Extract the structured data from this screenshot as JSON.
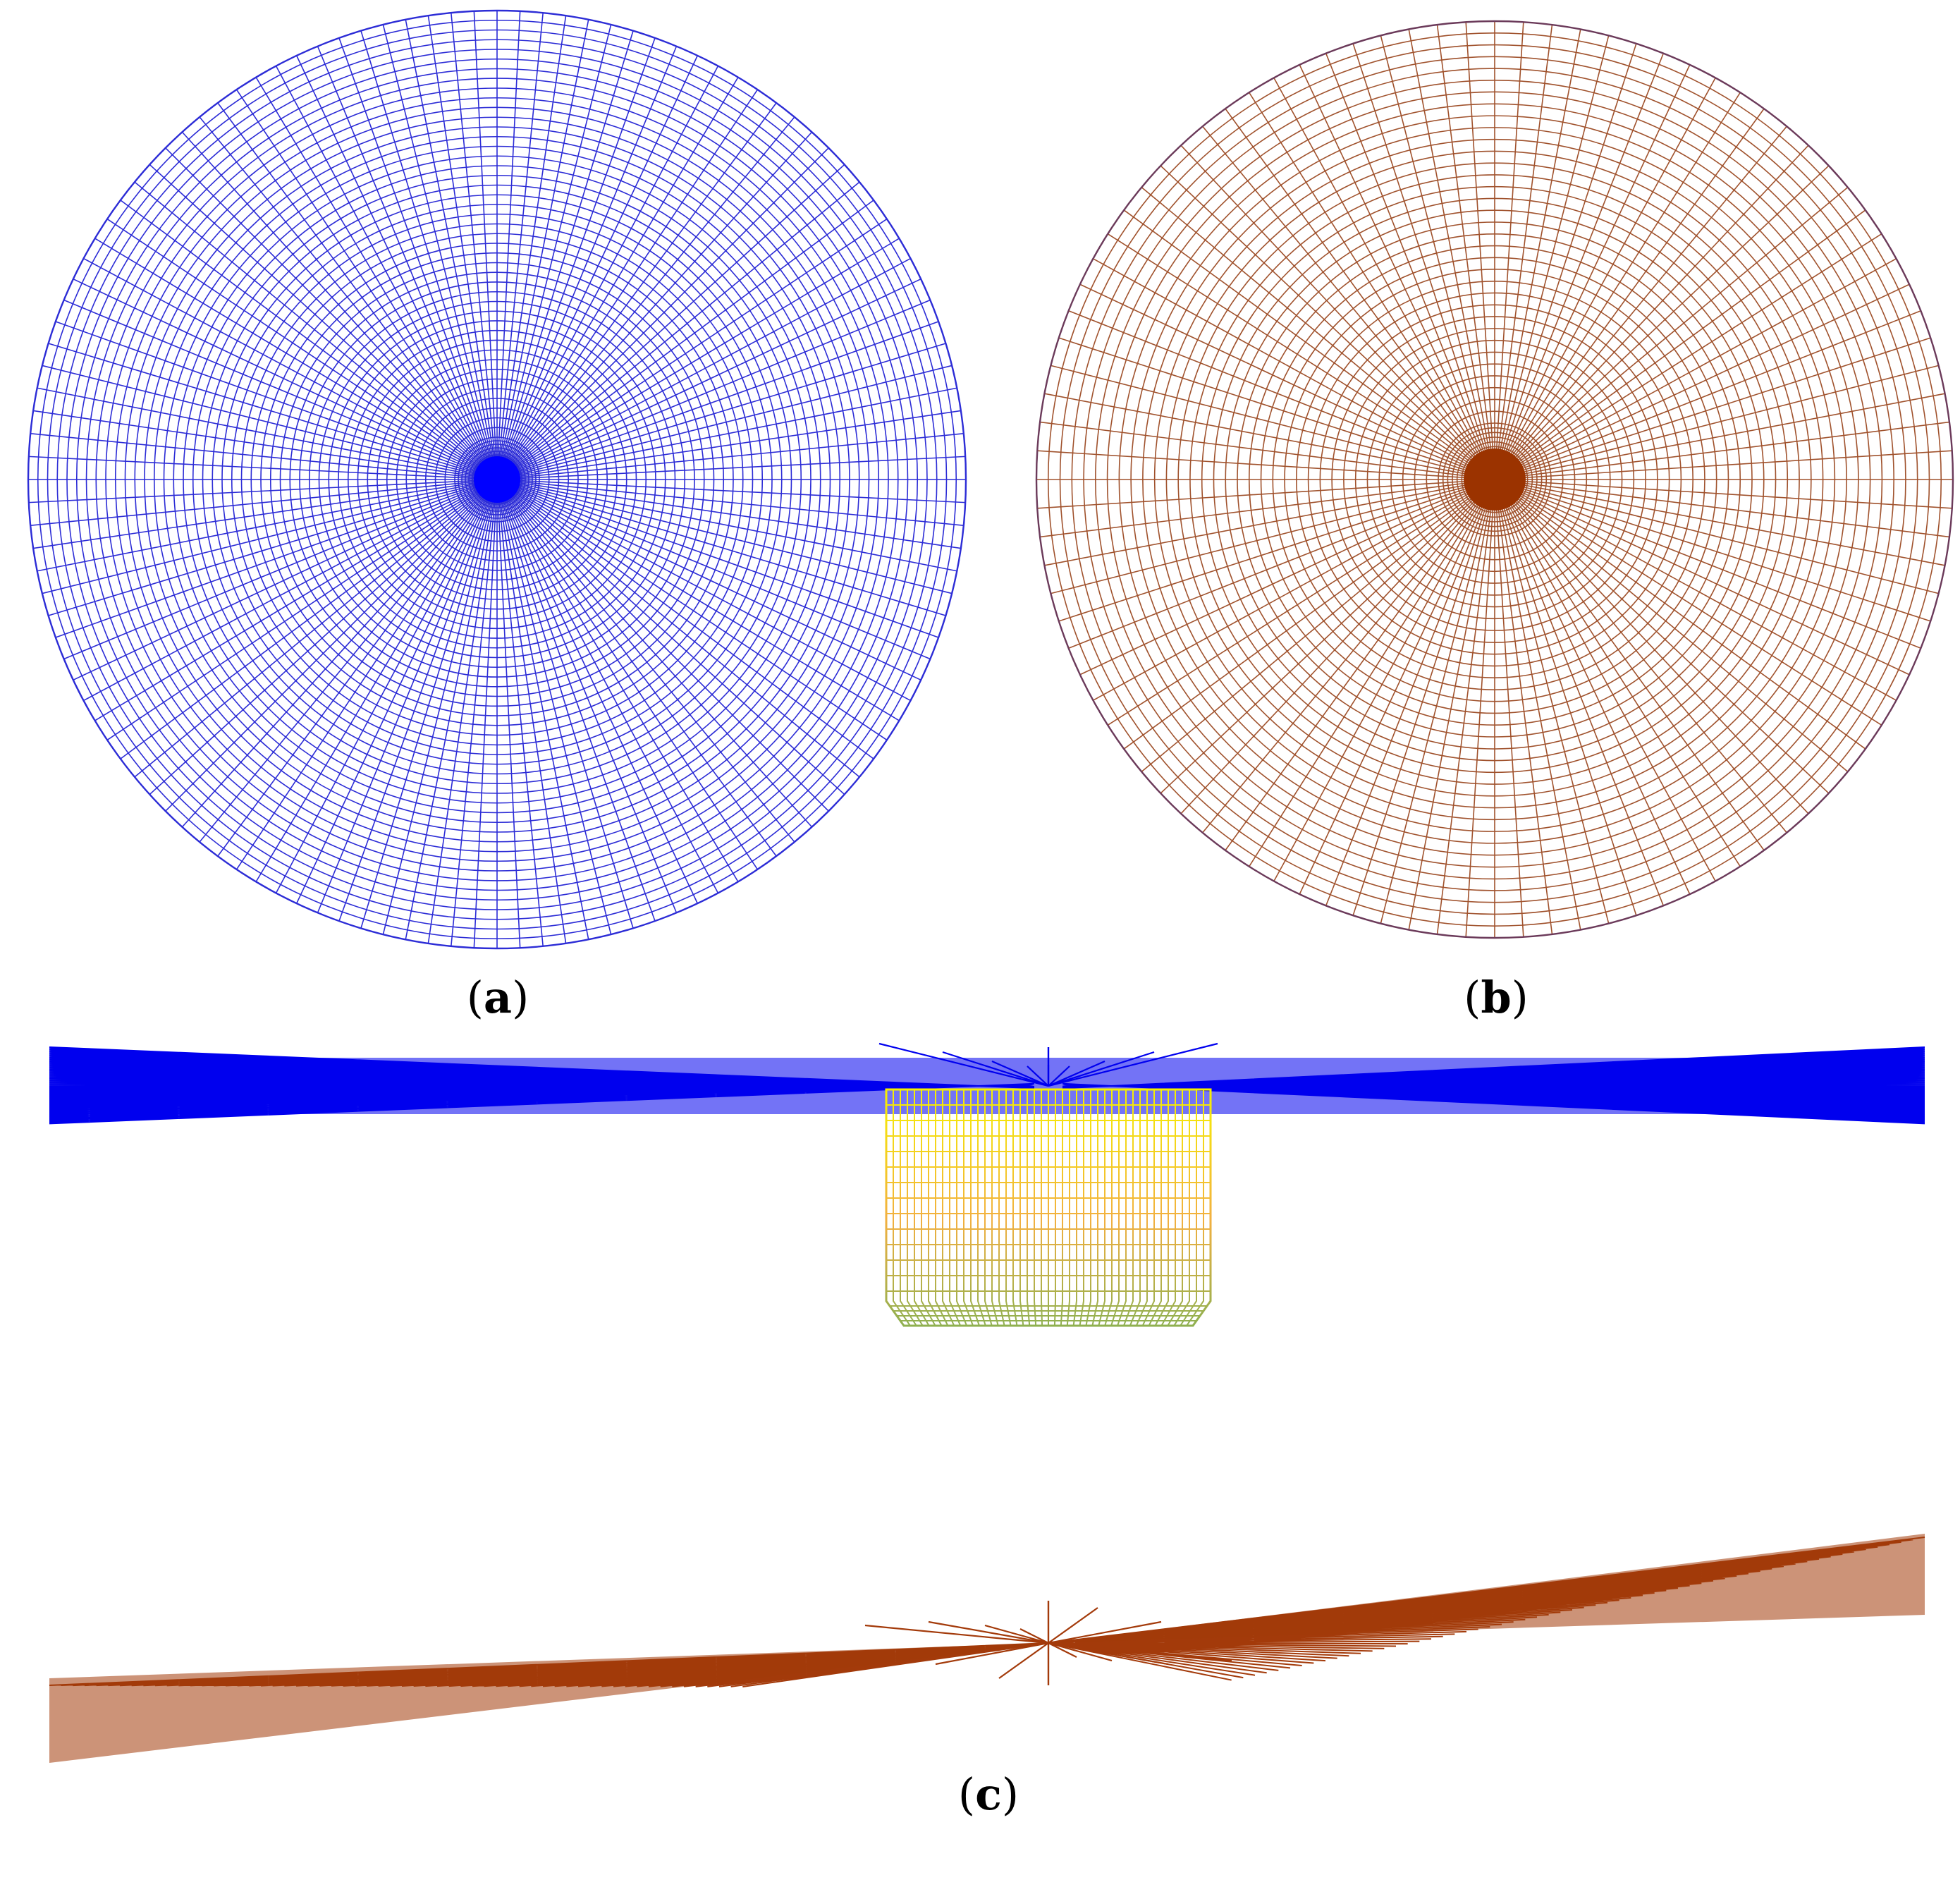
{
  "panels": {
    "a": {
      "label": "a"
    },
    "b": {
      "label": "b"
    },
    "c": {
      "label": "c"
    }
  },
  "colors": {
    "mesh_a": "#2c2cd6",
    "mesh_a_dense": "#0000ff",
    "mesh_b": "#a0522d",
    "mesh_b_dense": "#9b3300",
    "mesh_b_border": "#6b3a5a",
    "side_blue": "#0000ee",
    "side_brown": "#a33a0a",
    "cylinder_top": "#f6f000",
    "cylinder_mid": "#f2b040",
    "cylinder_bottom": "#8fb050"
  }
}
